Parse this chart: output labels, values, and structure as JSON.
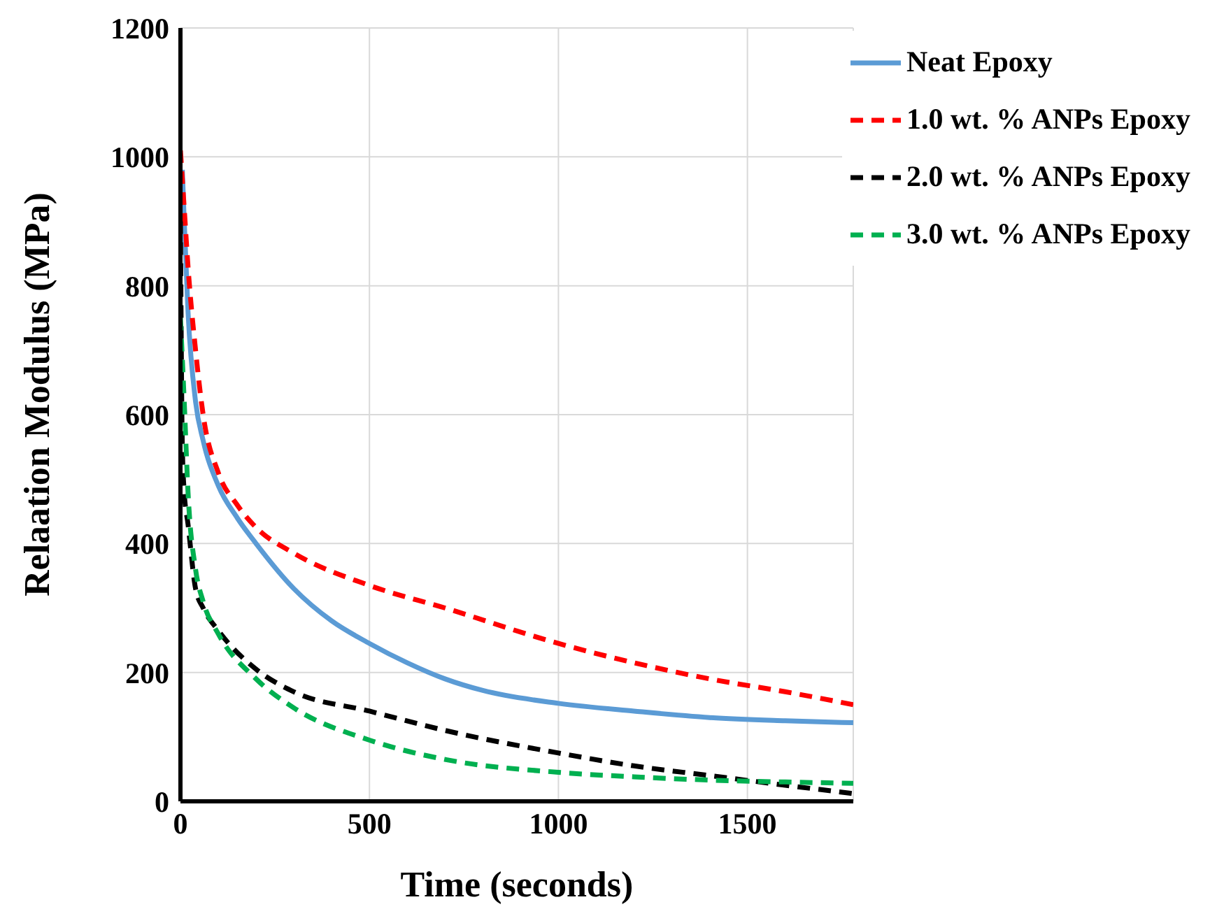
{
  "chart_data": {
    "type": "line",
    "xlabel": "Time (seconds)",
    "ylabel": "Relaation Modulus (MPa)",
    "xlim": [
      0,
      1780
    ],
    "xticks": [
      0,
      500,
      1000,
      1500
    ],
    "ylim": [
      0,
      1200
    ],
    "yticks": [
      0,
      200,
      400,
      600,
      800,
      1000,
      1200
    ],
    "grid": true,
    "legend": "top right",
    "marker": "none",
    "series": [
      {
        "name": "Neat Epoxy",
        "color": "#5b9bd5",
        "line_style": "solid",
        "x": [
          5,
          10,
          20,
          40,
          60,
          100,
          150,
          200,
          300,
          400,
          500,
          600,
          700,
          800,
          1000,
          1200,
          1400,
          1600,
          1780
        ],
        "values": [
          980,
          900,
          760,
          620,
          560,
          490,
          440,
          400,
          330,
          280,
          245,
          215,
          190,
          172,
          152,
          140,
          130,
          125,
          122
        ]
      },
      {
        "name": "1.0 wt. % ANPs Epoxy",
        "color": "#ff0000",
        "line_style": "dashed",
        "x": [
          0,
          10,
          20,
          40,
          60,
          100,
          150,
          200,
          300,
          500,
          700,
          1000,
          1200,
          1400,
          1600,
          1780
        ],
        "values": [
          1010,
          920,
          830,
          700,
          600,
          510,
          460,
          425,
          385,
          335,
          300,
          245,
          215,
          190,
          170,
          150
        ]
      },
      {
        "name": "2.0 wt. % ANPs Epoxy",
        "color": "#000000",
        "line_style": "dashed",
        "x": [
          0,
          5,
          10,
          20,
          40,
          60,
          100,
          200,
          300,
          500,
          700,
          1000,
          1200,
          1400,
          1600,
          1780
        ],
        "values": [
          900,
          550,
          480,
          430,
          330,
          300,
          265,
          205,
          170,
          140,
          110,
          75,
          55,
          40,
          25,
          12
        ]
      },
      {
        "name": "3.0 wt. % ANPs Epoxy",
        "color": "#00b050",
        "line_style": "dashed",
        "x": [
          0,
          10,
          20,
          40,
          60,
          100,
          200,
          300,
          500,
          700,
          1000,
          1200,
          1400,
          1600,
          1780
        ],
        "values": [
          750,
          620,
          480,
          360,
          310,
          260,
          190,
          145,
          95,
          65,
          45,
          38,
          33,
          30,
          28
        ]
      }
    ]
  }
}
